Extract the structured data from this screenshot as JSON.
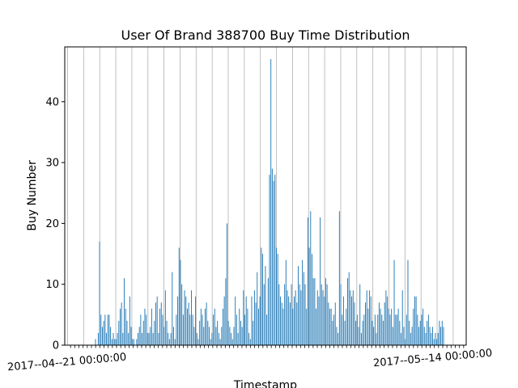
{
  "chart_data": {
    "type": "bar",
    "title": "User Of Brand 388700 Buy Time Distribution",
    "xlabel": "Timestamp",
    "ylabel": "Buy Number",
    "ylim": [
      0,
      49
    ],
    "yticks": [
      0,
      10,
      20,
      30,
      40
    ],
    "x_tick_labels": [
      {
        "label": "2017--04--21 00:00:00",
        "index": 0
      },
      {
        "label": "2017--05--14 00:00:00",
        "index": 1
      }
    ],
    "grid": "vertical",
    "bar_color": "#1f77b4",
    "values": [
      1,
      0,
      2,
      17,
      5,
      3,
      4,
      5,
      2,
      5,
      5,
      3,
      1,
      2,
      1,
      1,
      2,
      4,
      6,
      7,
      2,
      11,
      6,
      4,
      2,
      8,
      3,
      1,
      1,
      0,
      1,
      2,
      3,
      5,
      2,
      4,
      6,
      5,
      2,
      2,
      3,
      6,
      2,
      4,
      7,
      8,
      2,
      6,
      7,
      5,
      3,
      9,
      4,
      2,
      1,
      2,
      12,
      3,
      1,
      5,
      8,
      16,
      14,
      10,
      5,
      9,
      8,
      6,
      7,
      5,
      9,
      5,
      3,
      8,
      2,
      1,
      4,
      6,
      5,
      3,
      6,
      7,
      4,
      3,
      1,
      2,
      5,
      6,
      3,
      4,
      2,
      1,
      3,
      6,
      8,
      11,
      20,
      4,
      3,
      2,
      1,
      3,
      8,
      5,
      2,
      6,
      4,
      3,
      9,
      5,
      8,
      6,
      2,
      1,
      8,
      4,
      9,
      7,
      12,
      6,
      8,
      16,
      15,
      10,
      13,
      5,
      11,
      28,
      47,
      29,
      27,
      28,
      16,
      15,
      10,
      8,
      7,
      6,
      10,
      14,
      9,
      8,
      7,
      10,
      6,
      8,
      9,
      7,
      13,
      10,
      9,
      14,
      12,
      10,
      6,
      21,
      16,
      22,
      15,
      11,
      11,
      6,
      9,
      8,
      21,
      10,
      9,
      8,
      11,
      10,
      7,
      6,
      6,
      4,
      5,
      7,
      3,
      2,
      22,
      10,
      5,
      8,
      4,
      6,
      11,
      12,
      9,
      8,
      9,
      7,
      4,
      5,
      3,
      10,
      2,
      4,
      5,
      7,
      9,
      6,
      9,
      8,
      4,
      3,
      5,
      2,
      5,
      7,
      6,
      5,
      4,
      7,
      9,
      8,
      6,
      5,
      6,
      3,
      14,
      5,
      5,
      6,
      4,
      2,
      9,
      3,
      1,
      5,
      14,
      4,
      2,
      3,
      6,
      8,
      8,
      5,
      3,
      4,
      5,
      6,
      3,
      2,
      4,
      5,
      3,
      2,
      3,
      1,
      2,
      1,
      2,
      4,
      3,
      4,
      3
    ]
  }
}
